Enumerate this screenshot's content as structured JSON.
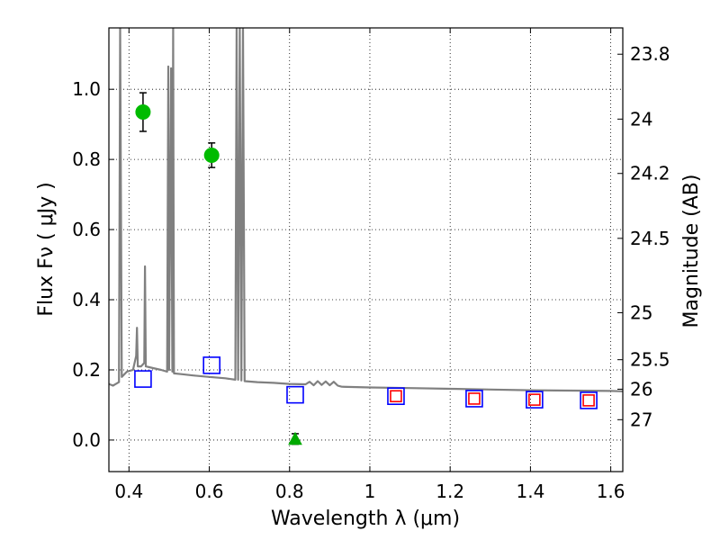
{
  "chart_data": {
    "type": "scatter",
    "xlabel": "Wavelength  λ (μm)",
    "ylabel": "Flux  Fν  ( μJy )",
    "ylabel_right": "Magnitude (AB)",
    "xlim": [
      0.35,
      1.63
    ],
    "ylim": [
      -0.09,
      1.175
    ],
    "x_ticks": [
      0.4,
      0.6,
      0.8,
      1.0,
      1.2,
      1.4,
      1.6
    ],
    "x_tick_labels": [
      "0.4",
      "0.6",
      "0.8",
      "1",
      "1.2",
      "1.4",
      "1.6"
    ],
    "y_ticks": [
      0.0,
      0.2,
      0.4,
      0.6,
      0.8,
      1.0
    ],
    "y_tick_labels": [
      "0.0",
      "0.2",
      "0.4",
      "0.6",
      "0.8",
      "1.0"
    ],
    "right_ticks": [
      {
        "label": "23.8",
        "flux": 1.1
      },
      {
        "label": "24",
        "flux": 0.915
      },
      {
        "label": "24.2",
        "flux": 0.76
      },
      {
        "label": "24.5",
        "flux": 0.575
      },
      {
        "label": "25",
        "flux": 0.363
      },
      {
        "label": "25.5",
        "flux": 0.229
      },
      {
        "label": "26",
        "flux": 0.145
      },
      {
        "label": "27",
        "flux": 0.058
      }
    ],
    "grid": true,
    "series": [
      {
        "marker": "circle",
        "color": "#00bb00",
        "points": [
          {
            "x": 0.435,
            "y": 0.935,
            "yerr": 0.055
          },
          {
            "x": 0.606,
            "y": 0.812,
            "yerr": 0.035
          }
        ]
      },
      {
        "marker": "triangle",
        "color": "#00aa00",
        "points": [
          {
            "x": 0.814,
            "y": 0.003,
            "yerr": 0.015
          }
        ]
      },
      {
        "marker": "open-square",
        "color": "#0000ff",
        "points": [
          {
            "x": 0.435,
            "y": 0.174
          },
          {
            "x": 0.606,
            "y": 0.213
          },
          {
            "x": 0.814,
            "y": 0.129
          },
          {
            "x": 1.065,
            "y": 0.125
          },
          {
            "x": 1.26,
            "y": 0.118
          },
          {
            "x": 1.41,
            "y": 0.115
          },
          {
            "x": 1.545,
            "y": 0.113
          }
        ]
      },
      {
        "marker": "open-square",
        "color": "#ff0000",
        "points": [
          {
            "x": 1.065,
            "y": 0.125
          },
          {
            "x": 1.26,
            "y": 0.118
          },
          {
            "x": 1.41,
            "y": 0.115
          },
          {
            "x": 1.545,
            "y": 0.113
          }
        ]
      },
      {
        "marker": "line",
        "color": "#808080",
        "points": [
          {
            "x": 0.35,
            "y": 0.16
          },
          {
            "x": 0.36,
            "y": 0.155
          },
          {
            "x": 0.375,
            "y": 0.165
          },
          {
            "x": 0.378,
            "y": 1.175
          },
          {
            "x": 0.382,
            "y": 0.18
          },
          {
            "x": 0.395,
            "y": 0.195
          },
          {
            "x": 0.41,
            "y": 0.2
          },
          {
            "x": 0.418,
            "y": 0.24
          },
          {
            "x": 0.42,
            "y": 0.32
          },
          {
            "x": 0.422,
            "y": 0.21
          },
          {
            "x": 0.43,
            "y": 0.21
          },
          {
            "x": 0.438,
            "y": 0.22
          },
          {
            "x": 0.44,
            "y": 0.495
          },
          {
            "x": 0.442,
            "y": 0.21
          },
          {
            "x": 0.46,
            "y": 0.205
          },
          {
            "x": 0.48,
            "y": 0.2
          },
          {
            "x": 0.495,
            "y": 0.195
          },
          {
            "x": 0.498,
            "y": 1.065
          },
          {
            "x": 0.5,
            "y": 0.2
          },
          {
            "x": 0.505,
            "y": 1.06
          },
          {
            "x": 0.508,
            "y": 0.195
          },
          {
            "x": 0.51,
            "y": 1.175
          },
          {
            "x": 0.512,
            "y": 0.19
          },
          {
            "x": 0.53,
            "y": 0.188
          },
          {
            "x": 0.56,
            "y": 0.184
          },
          {
            "x": 0.6,
            "y": 0.18
          },
          {
            "x": 0.64,
            "y": 0.176
          },
          {
            "x": 0.665,
            "y": 0.172
          },
          {
            "x": 0.668,
            "y": 1.175
          },
          {
            "x": 0.672,
            "y": 0.172
          },
          {
            "x": 0.676,
            "y": 1.175
          },
          {
            "x": 0.68,
            "y": 0.17
          },
          {
            "x": 0.684,
            "y": 1.175
          },
          {
            "x": 0.688,
            "y": 0.168
          },
          {
            "x": 0.72,
            "y": 0.165
          },
          {
            "x": 0.76,
            "y": 0.163
          },
          {
            "x": 0.8,
            "y": 0.16
          },
          {
            "x": 0.84,
            "y": 0.159
          },
          {
            "x": 0.85,
            "y": 0.166
          },
          {
            "x": 0.86,
            "y": 0.156
          },
          {
            "x": 0.87,
            "y": 0.168
          },
          {
            "x": 0.88,
            "y": 0.157
          },
          {
            "x": 0.89,
            "y": 0.167
          },
          {
            "x": 0.9,
            "y": 0.156
          },
          {
            "x": 0.91,
            "y": 0.166
          },
          {
            "x": 0.92,
            "y": 0.155
          },
          {
            "x": 0.93,
            "y": 0.152
          },
          {
            "x": 1.0,
            "y": 0.15
          },
          {
            "x": 1.1,
            "y": 0.148
          },
          {
            "x": 1.2,
            "y": 0.146
          },
          {
            "x": 1.3,
            "y": 0.144
          },
          {
            "x": 1.4,
            "y": 0.142
          },
          {
            "x": 1.5,
            "y": 0.141
          },
          {
            "x": 1.6,
            "y": 0.14
          },
          {
            "x": 1.63,
            "y": 0.139
          }
        ]
      }
    ]
  }
}
